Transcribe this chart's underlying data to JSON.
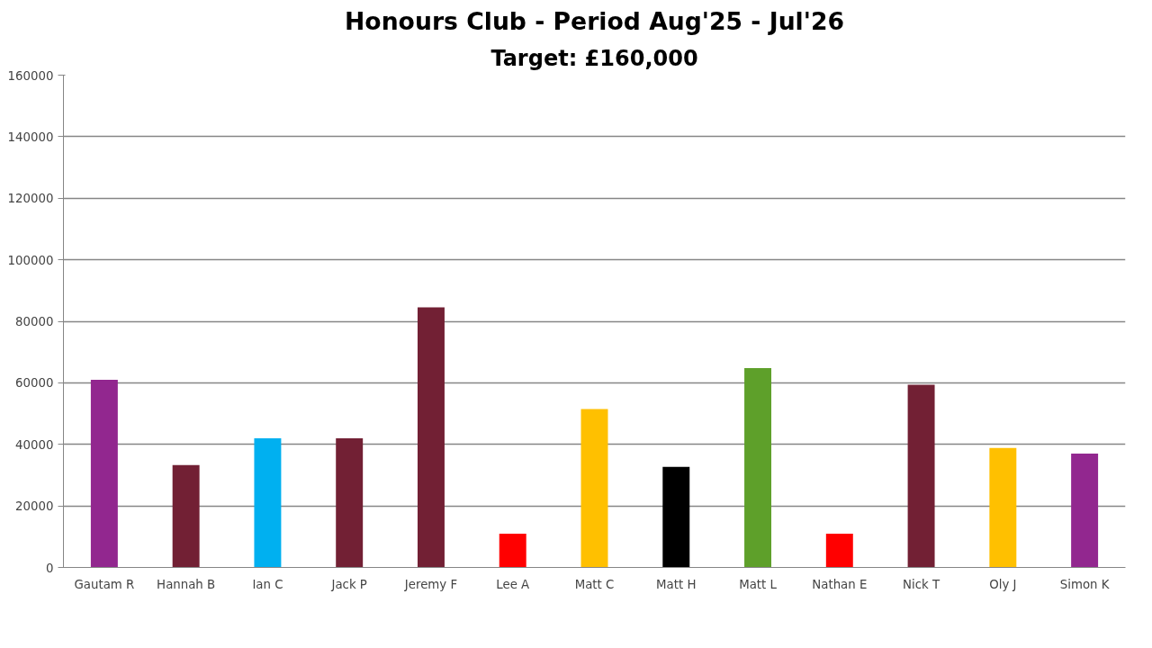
{
  "chart_data": {
    "type": "bar",
    "title": "Honours Club - Period Aug'25 - Jul'26",
    "subtitle": "Target: £160,000",
    "categories": [
      "Gautam R",
      "Hannah B",
      "Ian C",
      "Jack P",
      "Jeremy F",
      "Lee A",
      "Matt C",
      "Matt H",
      "Matt L",
      "Nathan E",
      "Nick T",
      "Oly J",
      "Simon K"
    ],
    "values": [
      61000,
      33300,
      42000,
      42000,
      84500,
      11000,
      51500,
      32700,
      64800,
      11000,
      59400,
      38800,
      37000
    ],
    "colors": [
      "#92278f",
      "#722034",
      "#00b0f0",
      "#722034",
      "#722034",
      "#ff0000",
      "#ffc000",
      "#000000",
      "#5ea02a",
      "#ff0000",
      "#722034",
      "#ffc000",
      "#92278f"
    ],
    "ylim": [
      0,
      160000
    ],
    "yticks": [
      0,
      20000,
      40000,
      60000,
      80000,
      100000,
      120000,
      140000,
      160000
    ],
    "grid": "y"
  }
}
